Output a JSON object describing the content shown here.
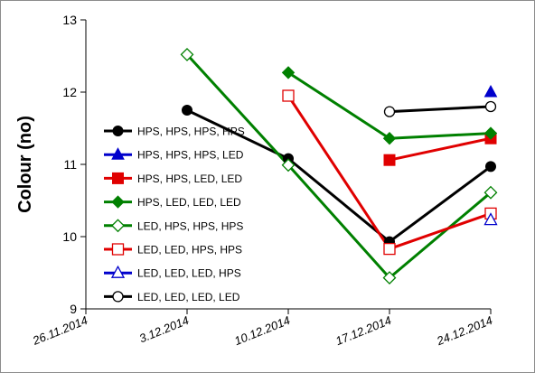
{
  "chart_data": {
    "type": "line",
    "title": "",
    "xlabel": "",
    "ylabel": "Colour (no)",
    "ylim": [
      9,
      13
    ],
    "yticks": [
      "9",
      "10",
      "11",
      "12",
      "13"
    ],
    "categories": [
      "26.11.2014",
      "3.12.2014",
      "10.12.2014",
      "17.12.2014",
      "24.12.2014"
    ],
    "grid": false,
    "legend_position": "left",
    "series": [
      {
        "name": "HPS, HPS, HPS, HPS",
        "color": "#000000",
        "marker": "circle",
        "filled": true,
        "values": [
          null,
          11.75,
          11.08,
          9.93,
          10.97
        ]
      },
      {
        "name": "HPS, HPS, HPS, LED",
        "color": "#0000cc",
        "marker": "triangle",
        "filled": true,
        "values": [
          null,
          null,
          null,
          null,
          12.0
        ]
      },
      {
        "name": "HPS, HPS, LED, LED",
        "color": "#e00000",
        "marker": "square",
        "filled": true,
        "values": [
          null,
          null,
          null,
          11.06,
          11.36
        ]
      },
      {
        "name": "HPS, LED, LED, LED",
        "color": "#008000",
        "marker": "diamond",
        "filled": true,
        "values": [
          null,
          null,
          12.27,
          11.36,
          11.43
        ]
      },
      {
        "name": "LED, HPS, HPS, HPS",
        "color": "#008000",
        "marker": "diamond",
        "filled": false,
        "values": [
          null,
          12.52,
          10.99,
          9.43,
          10.61
        ]
      },
      {
        "name": "LED, LED, HPS, HPS",
        "color": "#e00000",
        "marker": "square",
        "filled": false,
        "values": [
          null,
          null,
          11.95,
          9.83,
          10.32
        ]
      },
      {
        "name": "LED, LED, LED, HPS",
        "color": "#0000cc",
        "marker": "triangle",
        "filled": false,
        "values": [
          null,
          null,
          null,
          null,
          10.23
        ]
      },
      {
        "name": "LED, LED, LED, LED",
        "color": "#000000",
        "marker": "circle",
        "filled": false,
        "values": [
          null,
          null,
          null,
          11.73,
          11.8
        ]
      }
    ]
  }
}
